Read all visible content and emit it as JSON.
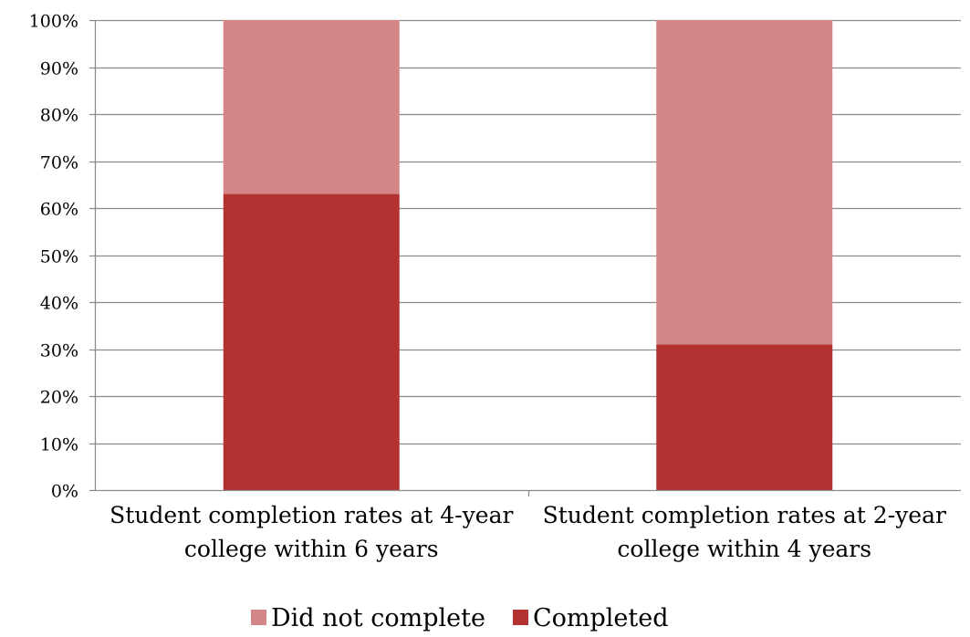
{
  "chart_data": {
    "type": "bar",
    "stacked": true,
    "categories": [
      [
        "Student completion rates at 4-year",
        "college within 6 years"
      ],
      [
        "Student completion rates at 2-year",
        "college within 4 years"
      ]
    ],
    "series": [
      {
        "name": "Completed",
        "values": [
          63,
          31
        ],
        "color": "#b33131"
      },
      {
        "name": "Did not complete",
        "values": [
          37,
          69
        ],
        "color": "#d48585"
      }
    ],
    "y_ticks": [
      "0%",
      "10%",
      "20%",
      "30%",
      "40%",
      "50%",
      "60%",
      "70%",
      "80%",
      "90%",
      "100%"
    ],
    "ylim": [
      0,
      100
    ],
    "grid": true,
    "legend_position": "bottom",
    "legend_order": [
      "Did not complete",
      "Completed"
    ]
  }
}
